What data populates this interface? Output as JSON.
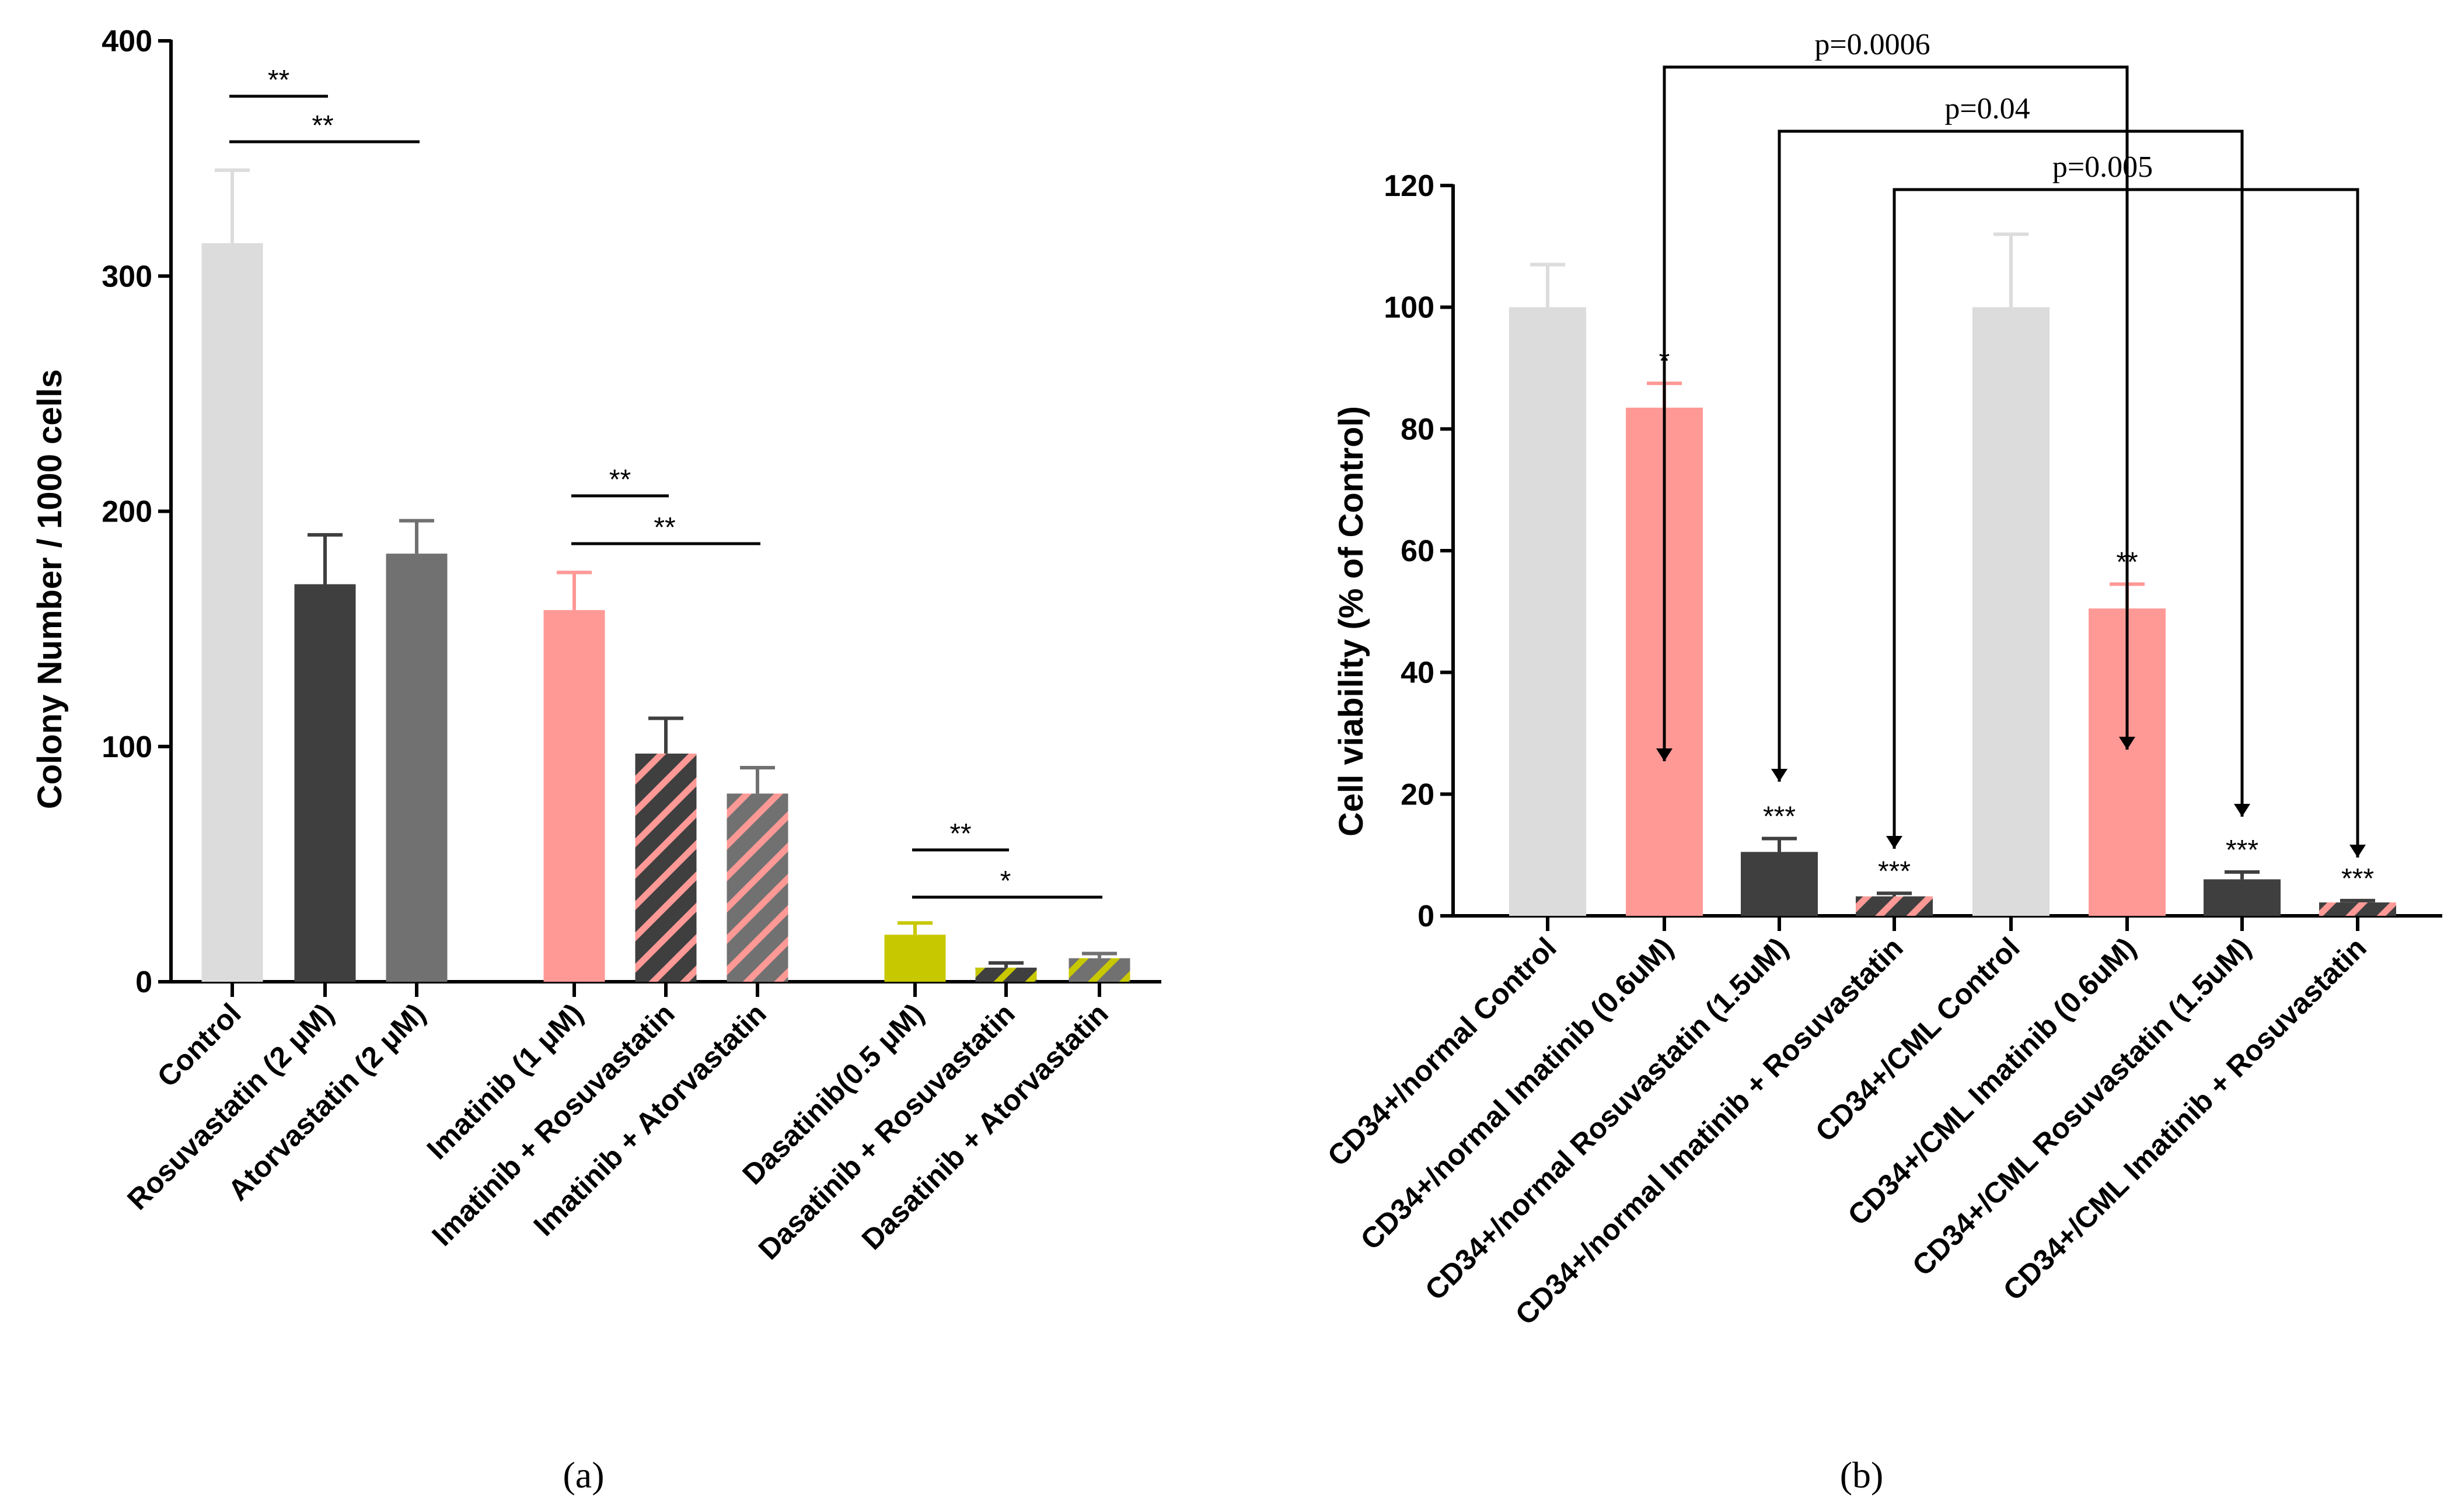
{
  "colors": {
    "control": "#dcdcdc",
    "rosuvastatin": "#3f3f3f",
    "atorvastatin": "#717171",
    "imatinib": "#ff9996",
    "dasatinib": "#c8c800",
    "hatch_imatinib": "#ff9996",
    "hatch_dasatinib": "#c8c800"
  },
  "chart_data": [
    {
      "type": "bar",
      "panel_label": "(a)",
      "ylabel": "Colony Number / 1000 cells",
      "xlabel": "",
      "ylim": [
        0,
        400
      ],
      "yticks": [
        "0",
        "100",
        "200",
        "300",
        "400"
      ],
      "categories": [
        "Control",
        "Rosuvastatin (2 μM)",
        "Atorvastatin (2 μM)",
        "Imatinib (1 μM)",
        "Imatinib + Rosuvastatin",
        "Imatinib + Atorvastatin",
        "Dasatinib(0.5 μM)",
        "Dasatinib + Rosuvastatin",
        "Dasatinib + Atorvastatin"
      ],
      "values": [
        314,
        169,
        182,
        158,
        97,
        80,
        20,
        6,
        10
      ],
      "errors": [
        31,
        21,
        14,
        16,
        15,
        11,
        5,
        2,
        2
      ],
      "fills": [
        "control",
        "rosuvastatin",
        "atorvastatin",
        "imatinib",
        "rosuvastatin",
        "atorvastatin",
        "dasatinib",
        "rosuvastatin",
        "atorvastatin"
      ],
      "hatch": [
        null,
        null,
        null,
        null,
        "hatch_imatinib",
        "hatch_imatinib",
        null,
        "hatch_dasatinib",
        "hatch_dasatinib"
      ],
      "significance": [
        {
          "from": 0,
          "to": 1,
          "label": "**"
        },
        {
          "from": 0,
          "to": 2,
          "label": "**"
        },
        {
          "from": 3,
          "to": 4,
          "label": "**"
        },
        {
          "from": 3,
          "to": 5,
          "label": "**"
        },
        {
          "from": 6,
          "to": 7,
          "label": "**"
        },
        {
          "from": 6,
          "to": 8,
          "label": "*"
        }
      ]
    },
    {
      "type": "bar",
      "panel_label": "(b)",
      "ylabel": "Cell viability (% of Control)",
      "xlabel": "",
      "ylim": [
        0,
        120
      ],
      "yticks": [
        "0",
        "20",
        "40",
        "60",
        "80",
        "100",
        "120"
      ],
      "categories": [
        "CD34+/normal Control",
        "CD34+/normal Imatinib (0.6uM)",
        "CD34+/normal Rosuvastatin (1.5uM)",
        "CD34+/normal Imatinib + Rosuvastatin",
        "CD34+/CML Control",
        "CD34+/CML Imatinib (0.6uM)",
        "CD34+/CML Rosuvastatin (1.5uM)",
        "CD34+/CML Imatinib + Rosuvastatin"
      ],
      "values": [
        100,
        83.5,
        10.5,
        3.2,
        100,
        50.5,
        6,
        2.2
      ],
      "errors": [
        7,
        4,
        2.2,
        0.5,
        12,
        4,
        1.2,
        0.3
      ],
      "fills": [
        "control",
        "imatinib",
        "rosuvastatin",
        "rosuvastatin",
        "control",
        "imatinib",
        "rosuvastatin",
        "rosuvastatin"
      ],
      "hatch": [
        null,
        null,
        null,
        "hatch_imatinib",
        null,
        null,
        null,
        "hatch_imatinib"
      ],
      "bar_labels": [
        "",
        "*",
        "***",
        "***",
        "",
        "**",
        "***",
        "***"
      ],
      "comparisons": [
        {
          "from": 1,
          "to": 5,
          "label": "p=0.0006"
        },
        {
          "from": 2,
          "to": 6,
          "label": "p=0.04"
        },
        {
          "from": 3,
          "to": 7,
          "label": "p=0.005"
        }
      ]
    }
  ]
}
